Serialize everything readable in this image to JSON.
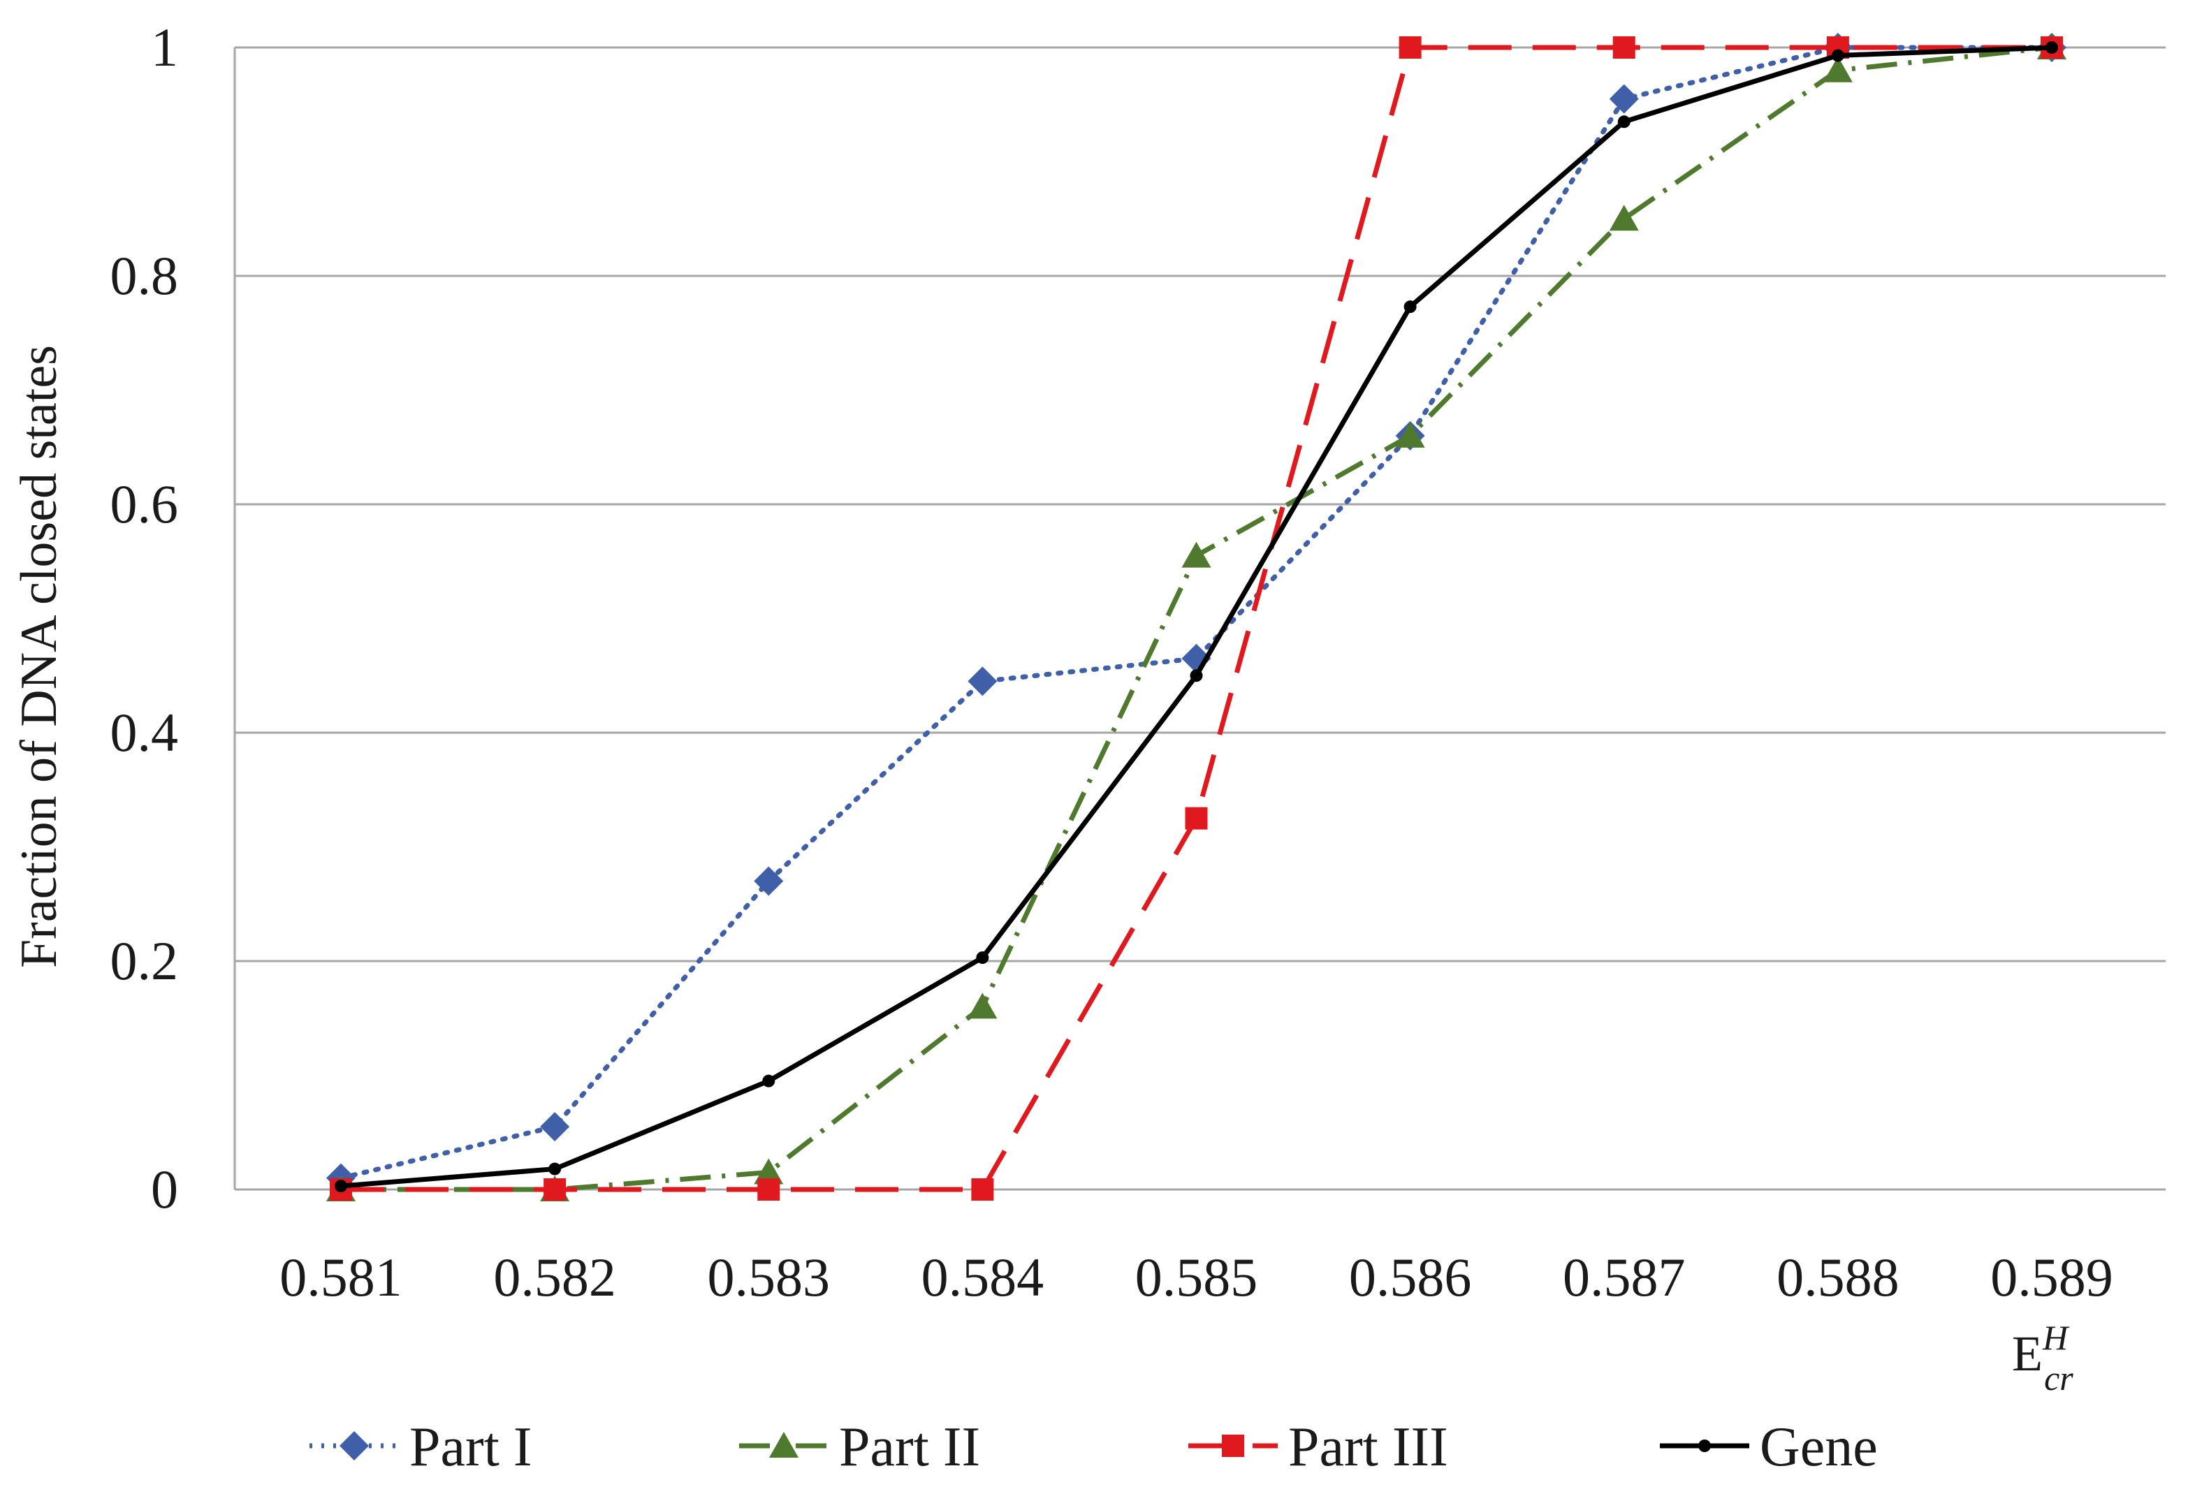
{
  "chart_data": {
    "type": "line",
    "title": "",
    "ylabel": "Fraction of DNA closed states",
    "xlabel": {
      "base": "E",
      "sup": "H",
      "sub": "cr"
    },
    "x": [
      0.581,
      0.582,
      0.583,
      0.584,
      0.585,
      0.586,
      0.587,
      0.588,
      0.589
    ],
    "x_tick_labels": [
      "0.581",
      "0.582",
      "0.583",
      "0.584",
      "0.585",
      "0.586",
      "0.587",
      "0.588",
      "0.589"
    ],
    "ylim": [
      0,
      1
    ],
    "y_ticks": [
      0,
      0.2,
      0.4,
      0.6,
      0.8,
      1
    ],
    "y_tick_labels": [
      "0",
      "0.2",
      "0.4",
      "0.6",
      "0.8",
      "1"
    ],
    "grid": "horizontal",
    "legend_position": "bottom",
    "series": [
      {
        "name": "Part I",
        "color": "#3f5fa8",
        "line_style": "dotted",
        "marker": "diamond",
        "values": [
          0.01,
          0.055,
          0.27,
          0.445,
          0.465,
          0.66,
          0.955,
          1.0,
          1.0
        ]
      },
      {
        "name": "Part II",
        "color": "#4f7a2e",
        "line_style": "dash-dot",
        "marker": "triangle",
        "values": [
          0.0,
          0.0,
          0.015,
          0.16,
          0.555,
          0.66,
          0.85,
          0.98,
          1.0
        ]
      },
      {
        "name": "Part III",
        "color": "#e0191f",
        "line_style": "dashed",
        "marker": "square",
        "values": [
          0.0,
          0.0,
          0.0,
          0.0,
          0.325,
          1.0,
          1.0,
          1.0,
          1.0
        ]
      },
      {
        "name": "Gene",
        "color": "#000000",
        "line_style": "solid",
        "marker": "circle",
        "values": [
          0.003,
          0.018,
          0.095,
          0.203,
          0.45,
          0.773,
          0.935,
          0.993,
          1.0
        ]
      }
    ]
  }
}
